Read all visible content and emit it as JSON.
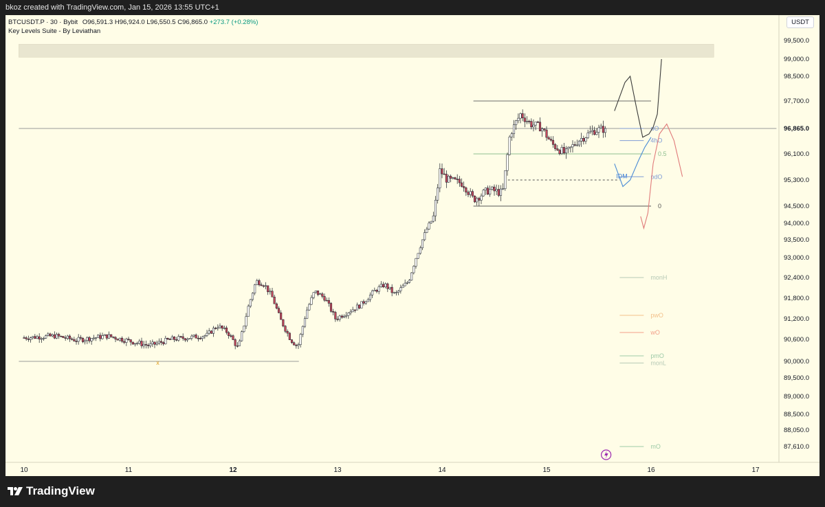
{
  "header": {
    "text": "bkoz created with TradingView.com, Jan 15, 2026 13:55 UTC+1"
  },
  "legend": {
    "symbol": "BTCUSDT.P · 30 · Bybit",
    "ohlc": "O96,591.3 H96,924.0 L96,550.5 C96,865.0",
    "change": "+273.7 (+0.28%)",
    "indicator": "Key Levels Suite - By Leviathan"
  },
  "currency": "USDT",
  "brand": "TradingView",
  "colors": {
    "background": "#fffde7",
    "up": "#ffffff",
    "down": "#c2485c",
    "wick": "#131722",
    "grid_line": "#555555"
  },
  "chart_data": {
    "type": "candlestick",
    "symbol": "BTCUSDT.P",
    "interval": "30",
    "exchange": "Bybit",
    "last_price": 96865.0,
    "x_axis": {
      "ticks": [
        "10",
        "11",
        "12",
        "13",
        "14",
        "15",
        "16",
        "17"
      ],
      "bold": [
        "12"
      ]
    },
    "y_axis": {
      "ticks": [
        99500,
        99000,
        98500,
        97700,
        96865,
        96100,
        95300,
        94500,
        94000,
        93500,
        93000,
        92400,
        91800,
        91200,
        90600,
        90000,
        89500,
        89000,
        88500,
        88050,
        87610
      ],
      "labels": [
        "99,500.0",
        "99,000.0",
        "98,500.0",
        "97,700.0",
        "96,865.0",
        "96,100.0",
        "95,300.0",
        "94,500.0",
        "94,000.0",
        "93,500.0",
        "93,000.0",
        "92,400.0",
        "91,800.0",
        "91,200.0",
        "90,600.0",
        "90,000.0",
        "89,500.0",
        "89,000.0",
        "88,500.0",
        "88,050.0",
        "87,610.0"
      ],
      "current_price_label": "96,865.0"
    },
    "series_anchors": [
      {
        "day": 10.0,
        "price": 90650
      },
      {
        "day": 10.3,
        "price": 90700
      },
      {
        "day": 10.5,
        "price": 90580
      },
      {
        "day": 10.8,
        "price": 90700
      },
      {
        "day": 11.0,
        "price": 90560
      },
      {
        "day": 11.2,
        "price": 90430
      },
      {
        "day": 11.4,
        "price": 90600
      },
      {
        "day": 11.6,
        "price": 90660
      },
      {
        "day": 11.75,
        "price": 90720
      },
      {
        "day": 11.85,
        "price": 91000
      },
      {
        "day": 11.95,
        "price": 90800
      },
      {
        "day": 12.05,
        "price": 90350
      },
      {
        "day": 12.15,
        "price": 91600
      },
      {
        "day": 12.22,
        "price": 92300
      },
      {
        "day": 12.3,
        "price": 92200
      },
      {
        "day": 12.38,
        "price": 91800
      },
      {
        "day": 12.45,
        "price": 91200
      },
      {
        "day": 12.55,
        "price": 90600
      },
      {
        "day": 12.62,
        "price": 90400
      },
      {
        "day": 12.7,
        "price": 91400
      },
      {
        "day": 12.78,
        "price": 92000
      },
      {
        "day": 12.88,
        "price": 91800
      },
      {
        "day": 12.98,
        "price": 91200
      },
      {
        "day": 13.1,
        "price": 91400
      },
      {
        "day": 13.22,
        "price": 91600
      },
      {
        "day": 13.35,
        "price": 92000
      },
      {
        "day": 13.45,
        "price": 92200
      },
      {
        "day": 13.55,
        "price": 91900
      },
      {
        "day": 13.68,
        "price": 92300
      },
      {
        "day": 13.75,
        "price": 93000
      },
      {
        "day": 13.85,
        "price": 93800
      },
      {
        "day": 13.92,
        "price": 94200
      },
      {
        "day": 13.98,
        "price": 95600
      },
      {
        "day": 14.05,
        "price": 95300
      },
      {
        "day": 14.2,
        "price": 95200
      },
      {
        "day": 14.3,
        "price": 94700
      },
      {
        "day": 14.45,
        "price": 95000
      },
      {
        "day": 14.58,
        "price": 94900
      },
      {
        "day": 14.65,
        "price": 96700
      },
      {
        "day": 14.75,
        "price": 97300
      },
      {
        "day": 14.85,
        "price": 97000
      },
      {
        "day": 14.95,
        "price": 96900
      },
      {
        "day": 15.05,
        "price": 96400
      },
      {
        "day": 15.18,
        "price": 96100
      },
      {
        "day": 15.3,
        "price": 96500
      },
      {
        "day": 15.45,
        "price": 96800
      },
      {
        "day": 15.58,
        "price": 96865
      }
    ],
    "levels": [
      {
        "label": "",
        "price": 97700,
        "day_start": 14.3,
        "day_end": 16.0,
        "style": "solid",
        "color": "#6b6b6b"
      },
      {
        "label": "0.5",
        "price": 96100,
        "day_start": 14.3,
        "day_end": 16.0,
        "style": "solid",
        "color": "#8fbf8f"
      },
      {
        "label": "0",
        "price": 94500,
        "day_start": 14.3,
        "day_end": 16.0,
        "style": "solid",
        "color": "#555555"
      },
      {
        "label": "",
        "price": 96865,
        "day_start": 9.95,
        "day_end": 17.2,
        "style": "solid",
        "color": "#9a9a9a"
      },
      {
        "label": "",
        "price": 95300,
        "day_start": 14.63,
        "day_end": 15.7,
        "style": "dashed",
        "color": "#555555"
      },
      {
        "label": "",
        "price": 90000,
        "day_start": 9.95,
        "day_end": 12.63,
        "style": "solid",
        "color": "#9a9a9a"
      },
      {
        "label": "dO",
        "price": 96865,
        "day_start": 15.7,
        "day_end": 15.93,
        "style": "solid",
        "color": "#7f9bd6"
      },
      {
        "label": "4hO",
        "price": 96500,
        "day_start": 15.7,
        "day_end": 15.93,
        "style": "solid",
        "color": "#7f9bd6"
      },
      {
        "label": "pdO",
        "price": 95400,
        "day_start": 15.7,
        "day_end": 15.93,
        "style": "solid",
        "color": "#7f9bd6"
      },
      {
        "label": "monH",
        "price": 92400,
        "day_start": 15.7,
        "day_end": 15.93,
        "style": "solid",
        "color": "#b5c9b5"
      },
      {
        "label": "pwO",
        "price": 91300,
        "day_start": 15.7,
        "day_end": 15.93,
        "style": "solid",
        "color": "#f3c08a"
      },
      {
        "label": "wO",
        "price": 90800,
        "day_start": 15.7,
        "day_end": 15.93,
        "style": "solid",
        "color": "#f3a08a"
      },
      {
        "label": "pmO",
        "price": 90150,
        "day_start": 15.7,
        "day_end": 15.93,
        "style": "solid",
        "color": "#9ccaa7"
      },
      {
        "label": "monL",
        "price": 89950,
        "day_start": 15.7,
        "day_end": 15.93,
        "style": "solid",
        "color": "#b5c9b5"
      },
      {
        "label": "mO",
        "price": 87610,
        "day_start": 15.7,
        "day_end": 15.93,
        "style": "solid",
        "color": "#9ccaa7"
      }
    ],
    "zone": {
      "price_low": 99050,
      "price_high": 99400,
      "day_start": 9.95,
      "day_end": 16.6,
      "color": "#e9e6d0"
    },
    "annotations": [
      {
        "text": "x",
        "day": 11.28,
        "price": 89900,
        "color": "#e0a020"
      },
      {
        "text": "IDM",
        "day": 15.72,
        "price": 95350,
        "color": "#3f7fd6"
      }
    ],
    "projections": [
      {
        "name": "black-path",
        "color": "#3a3a3a",
        "points": [
          {
            "day": 15.65,
            "price": 97400
          },
          {
            "day": 15.75,
            "price": 98300
          },
          {
            "day": 15.8,
            "price": 98500
          },
          {
            "day": 15.86,
            "price": 97500
          },
          {
            "day": 15.92,
            "price": 96600
          },
          {
            "day": 15.98,
            "price": 96700
          },
          {
            "day": 16.02,
            "price": 96900
          },
          {
            "day": 16.06,
            "price": 97300
          },
          {
            "day": 16.1,
            "price": 99000
          }
        ]
      },
      {
        "name": "blue-path",
        "color": "#4a8bd6",
        "points": [
          {
            "day": 15.65,
            "price": 95800
          },
          {
            "day": 15.73,
            "price": 95100
          },
          {
            "day": 15.8,
            "price": 95300
          },
          {
            "day": 15.88,
            "price": 95900
          },
          {
            "day": 15.94,
            "price": 96300
          },
          {
            "day": 16.0,
            "price": 96600
          }
        ]
      },
      {
        "name": "red-path",
        "color": "#e07a7a",
        "points": [
          {
            "day": 15.9,
            "price": 94200
          },
          {
            "day": 15.93,
            "price": 93850
          },
          {
            "day": 15.97,
            "price": 94300
          },
          {
            "day": 16.02,
            "price": 95800
          },
          {
            "day": 16.08,
            "price": 96700
          },
          {
            "day": 16.15,
            "price": 97000
          },
          {
            "day": 16.22,
            "price": 96500
          },
          {
            "day": 16.3,
            "price": 95400
          }
        ]
      }
    ]
  }
}
